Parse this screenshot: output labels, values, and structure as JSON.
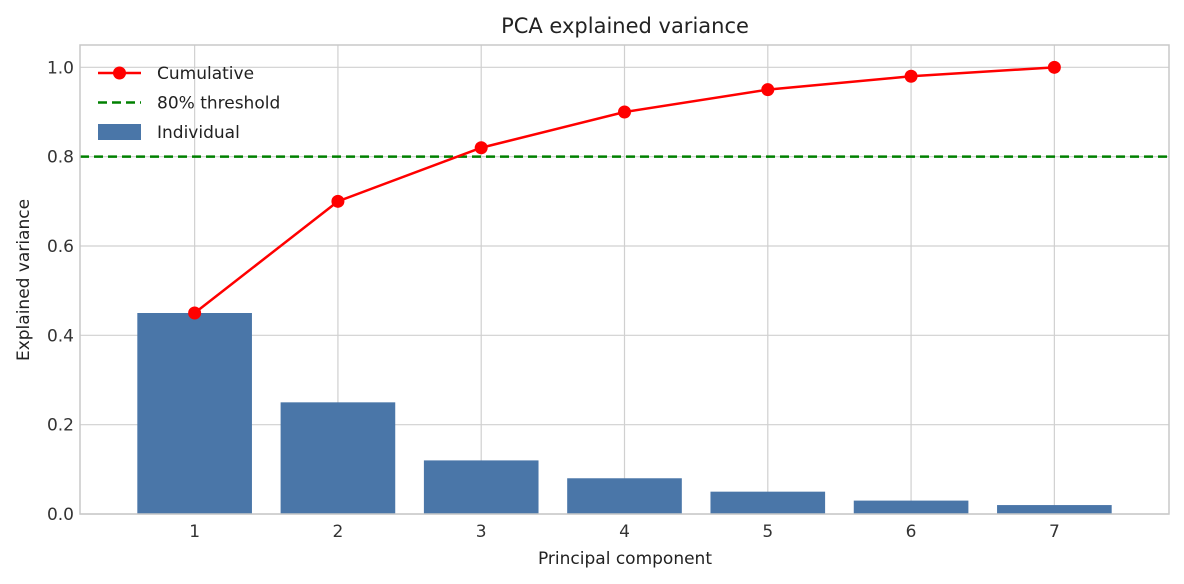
{
  "chart_data": {
    "type": "bar",
    "title": "PCA explained variance",
    "xlabel": "Principal component",
    "ylabel": "Explained variance",
    "categories": [
      "1",
      "2",
      "3",
      "4",
      "5",
      "6",
      "7"
    ],
    "x": [
      1,
      2,
      3,
      4,
      5,
      6,
      7
    ],
    "xlim": [
      0.2,
      7.8
    ],
    "ylim": [
      0,
      1.05
    ],
    "yticks": [
      0.0,
      0.2,
      0.4,
      0.6,
      0.8,
      1.0
    ],
    "ytick_labels": [
      "0.0",
      "0.2",
      "0.4",
      "0.6",
      "0.8",
      "1.0"
    ],
    "grid": true,
    "legend_position": "top-left",
    "series": [
      {
        "name": "Individual",
        "kind": "bar",
        "color": "#4a76a8",
        "values": [
          0.45,
          0.25,
          0.12,
          0.08,
          0.05,
          0.03,
          0.02
        ]
      },
      {
        "name": "Cumulative",
        "kind": "line-marker",
        "color": "#ff0000",
        "values": [
          0.45,
          0.7,
          0.82,
          0.9,
          0.95,
          0.98,
          1.0
        ]
      }
    ],
    "threshold": {
      "name": "80% threshold",
      "value": 0.8,
      "color": "#008000",
      "style": "dashed"
    },
    "legend": [
      {
        "label": "Cumulative",
        "kind": "line-marker",
        "color": "#ff0000"
      },
      {
        "label": "80% threshold",
        "kind": "dashed-line",
        "color": "#008000"
      },
      {
        "label": "Individual",
        "kind": "patch",
        "color": "#4a76a8"
      }
    ]
  }
}
